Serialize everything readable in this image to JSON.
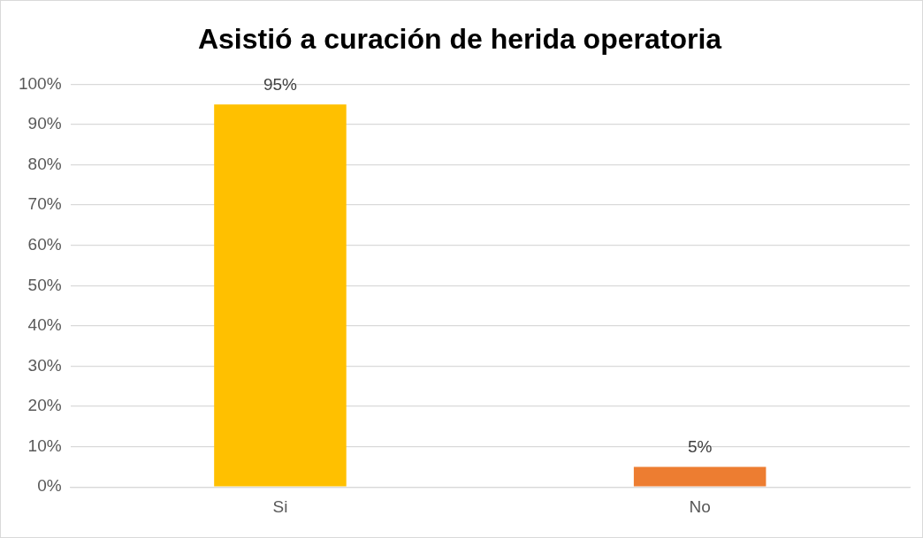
{
  "chart_data": {
    "type": "bar",
    "title": "Asistió a curación de herida operatoria",
    "categories": [
      "Si",
      "No"
    ],
    "values": [
      95,
      5
    ],
    "colors": [
      "#ffc000",
      "#ed7d31"
    ],
    "value_labels": [
      "95%",
      "5%"
    ],
    "ylim": [
      0,
      100
    ],
    "yticks": [
      {
        "value": 0,
        "label": "0%"
      },
      {
        "value": 10,
        "label": "10%"
      },
      {
        "value": 20,
        "label": "20%"
      },
      {
        "value": 30,
        "label": "30%"
      },
      {
        "value": 40,
        "label": "40%"
      },
      {
        "value": 50,
        "label": "50%"
      },
      {
        "value": 60,
        "label": "60%"
      },
      {
        "value": 70,
        "label": "70%"
      },
      {
        "value": 80,
        "label": "80%"
      },
      {
        "value": 90,
        "label": "90%"
      },
      {
        "value": 100,
        "label": "100%"
      }
    ],
    "grid": "y",
    "legend": false
  }
}
